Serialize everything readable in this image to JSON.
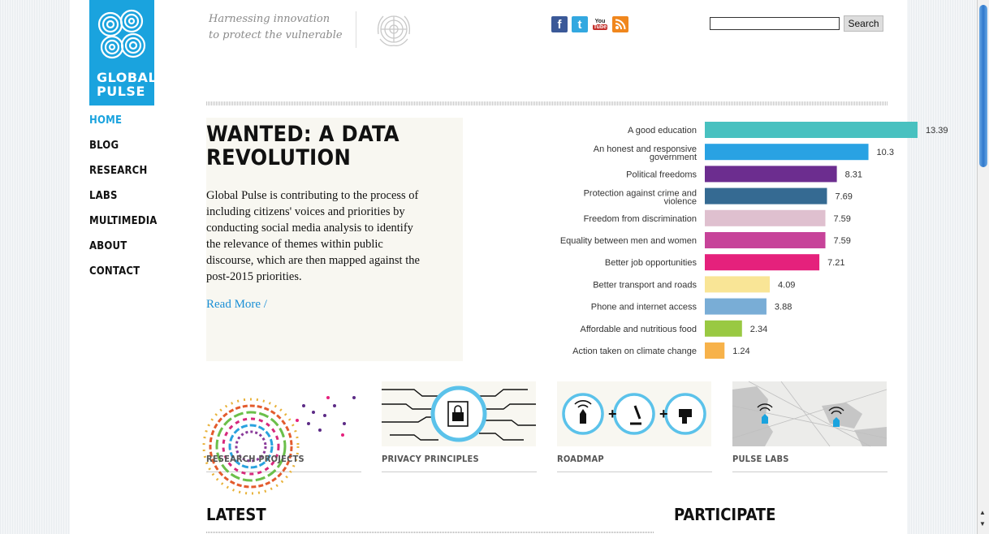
{
  "brand": {
    "wordmark_line1": "GLOBAL",
    "wordmark_line2": "PULSE",
    "accent": "#1aa3de"
  },
  "tagline": {
    "line1": "Harnessing innovation",
    "line2": "to protect the vulnerable"
  },
  "nav": {
    "items": [
      "HOME",
      "BLOG",
      "RESEARCH",
      "LABS",
      "MULTIMEDIA",
      "ABOUT",
      "CONTACT"
    ],
    "active": "HOME"
  },
  "social": [
    {
      "name": "facebook-icon",
      "glyph": "f",
      "color": "#3b5998"
    },
    {
      "name": "twitter-icon",
      "glyph": "t",
      "color": "#33a8e0"
    },
    {
      "name": "youtube-icon",
      "glyph": "You Tube",
      "color": "#c4302b"
    },
    {
      "name": "rss-icon",
      "glyph": "",
      "color": "#f0871d"
    }
  ],
  "search": {
    "button_label": "Search",
    "value": ""
  },
  "feature": {
    "title": "WANTED: A DATA REVOLUTION",
    "body": "Global Pulse is contributing to the process of including citizens' voices and priorities by conducting social media analysis to identify the relevance of themes within public discourse, which are then mapped against the post-2015 priorities.",
    "read_more": "Read More /"
  },
  "chart_data": {
    "type": "bar",
    "orientation": "horizontal",
    "categories": [
      "A good education",
      "An honest and responsive government",
      "Political freedoms",
      "Protection against crime and violence",
      "Freedom from discrimination",
      "Equality between men and women",
      "Better job opportunities",
      "Better transport and roads",
      "Phone and internet access",
      "Affordable and nutritious food",
      "Action taken on climate change"
    ],
    "values": [
      13.39,
      10.3,
      8.31,
      7.69,
      7.59,
      7.59,
      7.21,
      4.09,
      3.88,
      2.34,
      1.24
    ],
    "colors": [
      "#48c1c0",
      "#29a2e3",
      "#6c2d8f",
      "#356a92",
      "#dfc0cf",
      "#c74399",
      "#e5217c",
      "#f9e596",
      "#79add6",
      "#99c942",
      "#f7b24a"
    ],
    "xlim": [
      0,
      14
    ],
    "grid": false,
    "legend": "none"
  },
  "tiles": [
    {
      "label": "RESEARCH PROJECTS"
    },
    {
      "label": "PRIVACY PRINCIPLES"
    },
    {
      "label": "ROADMAP"
    },
    {
      "label": "PULSE LABS"
    }
  ],
  "sections": {
    "latest": "LATEST",
    "participate": "PARTICIPATE"
  }
}
